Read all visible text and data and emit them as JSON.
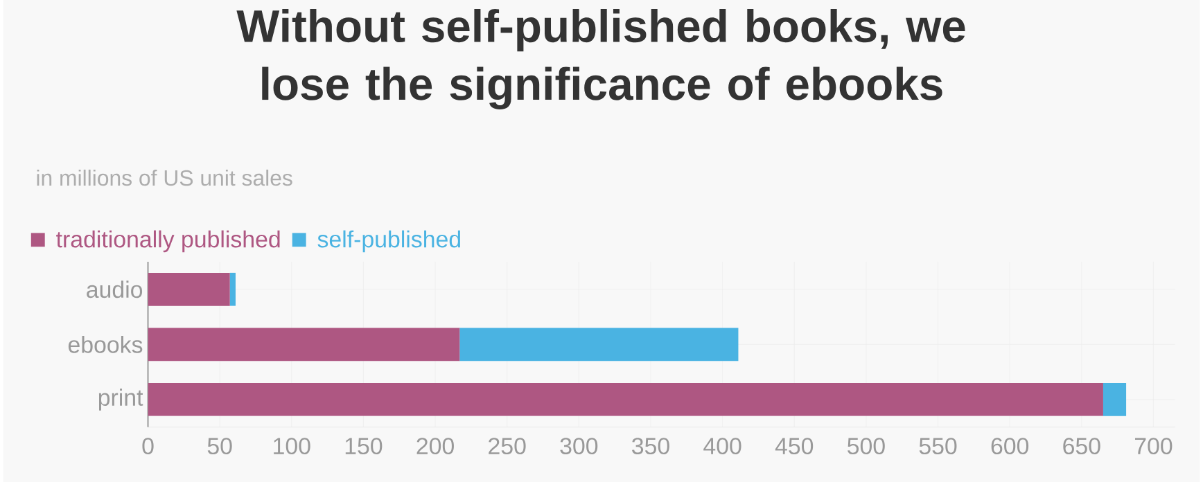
{
  "chart_data": {
    "type": "bar",
    "orientation": "horizontal",
    "stacked": true,
    "title": "Without self-published books, we lose the significance of ebooks",
    "subtitle": "in millions of US unit sales",
    "categories": [
      "audio",
      "ebooks",
      "print"
    ],
    "series": [
      {
        "name": "traditionally published",
        "color": "#ae5782",
        "values": [
          57,
          217,
          665
        ]
      },
      {
        "name": "self-published",
        "color": "#4ab3e2",
        "values": [
          4,
          194,
          16
        ]
      }
    ],
    "xlim": [
      0,
      715
    ],
    "xticks": [
      0,
      50,
      100,
      150,
      200,
      250,
      300,
      350,
      400,
      450,
      500,
      550,
      600,
      650,
      700
    ],
    "grid": true,
    "legend": "top left"
  }
}
